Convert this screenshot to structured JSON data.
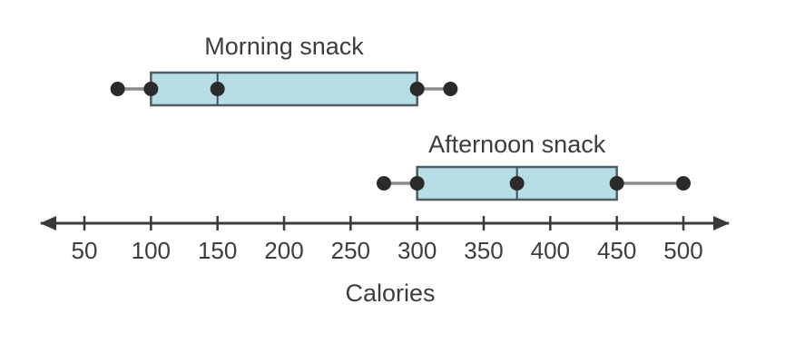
{
  "chart_data": {
    "type": "boxplot",
    "orientation": "horizontal",
    "xlabel": "Calories",
    "axis": {
      "min": 50,
      "max": 500,
      "tick_step": 50,
      "ticks": [
        50,
        100,
        150,
        200,
        250,
        300,
        350,
        400,
        450,
        500
      ],
      "arrows_both_ends": true,
      "grid": false
    },
    "series": [
      {
        "name": "Morning snack",
        "min": 75,
        "q1": 100,
        "median": 150,
        "q3": 300,
        "max": 325
      },
      {
        "name": "Afternoon snack",
        "min": 275,
        "q1": 300,
        "median": 375,
        "q3": 450,
        "max": 500
      }
    ]
  },
  "colors": {
    "background": "#ffffff",
    "box_fill": "#b7dee6",
    "box_border": "#4d5d63",
    "median_line": "#3f4f55",
    "dot": "#2b2b2b",
    "whisker": "#8c8c8c",
    "axis": "#3b3b3b",
    "text": "#3d3d3d"
  }
}
